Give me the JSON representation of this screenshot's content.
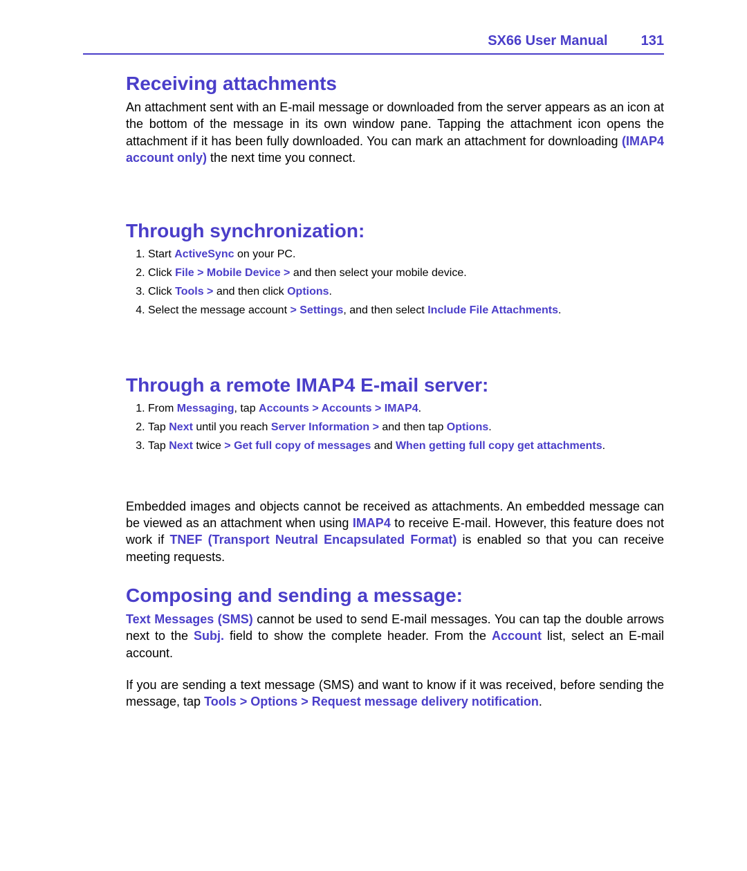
{
  "colors": {
    "accent": "#4a3ec9",
    "text": "#000000",
    "background": "#ffffff"
  },
  "typography": {
    "heading_fontsize_pt": 21,
    "body_fontsize_pt": 14,
    "list_fontsize_pt": 12,
    "header_fontsize_pt": 15,
    "font_family": "Verdana, sans-serif"
  },
  "header": {
    "title": "SX66 User Manual",
    "page_number": "131"
  },
  "sections": {
    "receiving": {
      "title": "Receiving attachments",
      "para_parts": [
        {
          "t": "An attachment sent with an E-mail message or downloaded from the server appears as an icon at the bottom of the message in its own window pane. Tapping the attachment icon opens the attachment if it has been fully downloaded. You can mark an attachment for downloading ",
          "hl": false
        },
        {
          "t": "(IMAP4 account only)",
          "hl": true
        },
        {
          "t": " the next time you connect.",
          "hl": false
        }
      ]
    },
    "sync": {
      "title": "Through synchronization:",
      "steps": [
        [
          {
            "t": "Start ",
            "hl": false
          },
          {
            "t": "ActiveSync",
            "hl": true
          },
          {
            "t": " on your PC.",
            "hl": false
          }
        ],
        [
          {
            "t": "Click ",
            "hl": false
          },
          {
            "t": "File > Mobile Device >",
            "hl": true
          },
          {
            "t": " and then select your mobile device.",
            "hl": false
          }
        ],
        [
          {
            "t": "Click ",
            "hl": false
          },
          {
            "t": "Tools >",
            "hl": true
          },
          {
            "t": " and then click ",
            "hl": false
          },
          {
            "t": "Options",
            "hl": true
          },
          {
            "t": ".",
            "hl": false
          }
        ],
        [
          {
            "t": "Select the message account ",
            "hl": false
          },
          {
            "t": "> Settings",
            "hl": true
          },
          {
            "t": ", and then select ",
            "hl": false
          },
          {
            "t": "Include File Attachments",
            "hl": true
          },
          {
            "t": ".",
            "hl": false
          }
        ]
      ]
    },
    "imap": {
      "title": "Through a remote IMAP4 E-mail server:",
      "steps": [
        [
          {
            "t": "From ",
            "hl": false
          },
          {
            "t": "Messaging",
            "hl": true
          },
          {
            "t": ", tap ",
            "hl": false
          },
          {
            "t": "Accounts > Accounts > IMAP4",
            "hl": true
          },
          {
            "t": ".",
            "hl": false
          }
        ],
        [
          {
            "t": "Tap ",
            "hl": false
          },
          {
            "t": "Next",
            "hl": true
          },
          {
            "t": " until you reach ",
            "hl": false
          },
          {
            "t": "Server Information >",
            "hl": true
          },
          {
            "t": " and then tap ",
            "hl": false
          },
          {
            "t": "Options",
            "hl": true
          },
          {
            "t": ".",
            "hl": false
          }
        ],
        [
          {
            "t": "Tap ",
            "hl": false
          },
          {
            "t": "Next",
            "hl": true
          },
          {
            "t": " twice ",
            "hl": false
          },
          {
            "t": "> Get full copy of messages",
            "hl": true
          },
          {
            "t": " and ",
            "hl": false
          },
          {
            "t": "When getting full copy get attachments",
            "hl": true
          },
          {
            "t": ".",
            "hl": false
          }
        ]
      ],
      "note_parts": [
        {
          "t": "Embedded images and objects cannot be received as attachments. An embedded message can be viewed as an attachment when using ",
          "hl": false
        },
        {
          "t": "IMAP4",
          "hl": true
        },
        {
          "t": " to receive E-mail. However, this feature does not work if ",
          "hl": false
        },
        {
          "t": "TNEF (Transport Neutral Encapsulated Format)",
          "hl": true
        },
        {
          "t": " is enabled so that you can receive meeting requests.",
          "hl": false
        }
      ]
    },
    "composing": {
      "title": "Composing and sending a message:",
      "para1_parts": [
        {
          "t": "Text Messages (SMS)",
          "hl": true
        },
        {
          "t": " cannot be used to send E-mail messages. You can tap the double arrows next to the ",
          "hl": false
        },
        {
          "t": "Subj.",
          "hl": true
        },
        {
          "t": " field to show the complete header. From the ",
          "hl": false
        },
        {
          "t": "Account",
          "hl": true
        },
        {
          "t": " list, select an E-mail account.",
          "hl": false
        }
      ],
      "para2_parts": [
        {
          "t": "If you are sending a text message (SMS) and want to know if it was received, before sending the message, tap ",
          "hl": false
        },
        {
          "t": "Tools > Options > Request message delivery notification",
          "hl": true
        },
        {
          "t": ".",
          "hl": false
        }
      ]
    }
  }
}
